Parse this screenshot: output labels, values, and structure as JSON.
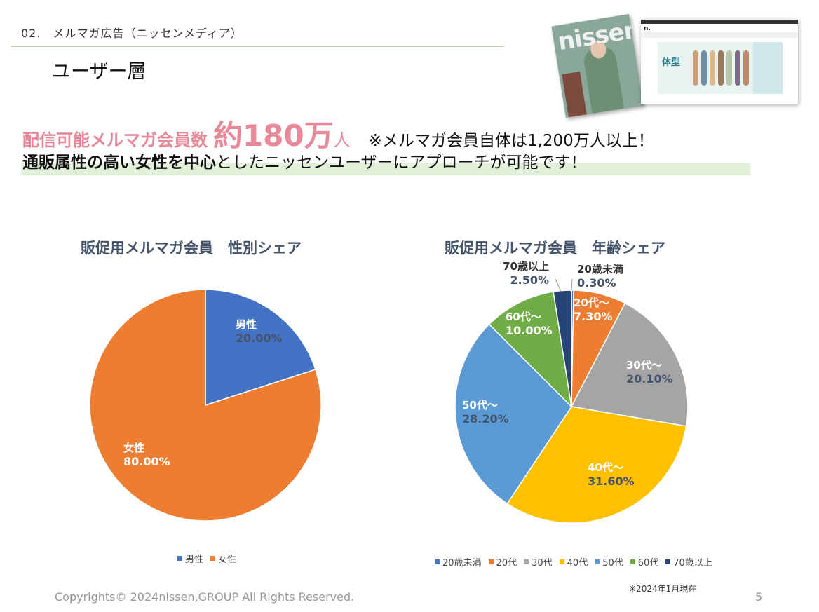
{
  "header": {
    "section_label": "02.　メルマガ広告（ニッセンメディア）",
    "page_title": "ユーザー層"
  },
  "images": {
    "magazine_brand": "nissen",
    "website_banner_text": "体型"
  },
  "headline": {
    "label": "配信可能メルマガ会員数",
    "number": "約180万",
    "unit": "人",
    "note": "※メルマガ会員自体は1,200万人以上！"
  },
  "subline": {
    "bold": "通販属性の高い女性を中心",
    "rest": "としたニッセンユーザーにアプローチが可能です！"
  },
  "colors": {
    "accent_pink": "#e8899a",
    "highlight_green": "#e2f0d9"
  },
  "chart_data": [
    {
      "type": "pie",
      "title": "販促用メルマガ会員　性別シェア",
      "categories": [
        "男性",
        "女性"
      ],
      "values": [
        20.0,
        80.0
      ],
      "data_labels": [
        "20.00%",
        "80.00%"
      ],
      "colors": [
        "#4472c4",
        "#ed7d31"
      ],
      "legend": "bottom"
    },
    {
      "type": "pie",
      "title": "販促用メルマガ会員　年齢シェア",
      "categories": [
        "20歳未満",
        "20代",
        "30代",
        "40代",
        "50代",
        "60代",
        "70歳以上"
      ],
      "values": [
        0.3,
        7.3,
        20.1,
        31.6,
        28.2,
        10.0,
        2.5
      ],
      "slice_labels": [
        "20歳未満",
        "20代～",
        "30代～",
        "40代～",
        "50代～",
        "60代～",
        "70歳以上"
      ],
      "data_labels": [
        "0.30%",
        "7.30%",
        "20.10%",
        "31.60%",
        "28.20%",
        "10.00%",
        "2.50%"
      ],
      "colors": [
        "#4472c4",
        "#ed7d31",
        "#a5a5a5",
        "#ffc000",
        "#5b9bd5",
        "#70ad47",
        "#264478"
      ],
      "legend": "bottom"
    }
  ],
  "footer": {
    "copyright": "Copyrights© 2024nissen,GROUP All Rights Reserved.",
    "as_of": "※2024年1月現在",
    "page_number": "5"
  }
}
